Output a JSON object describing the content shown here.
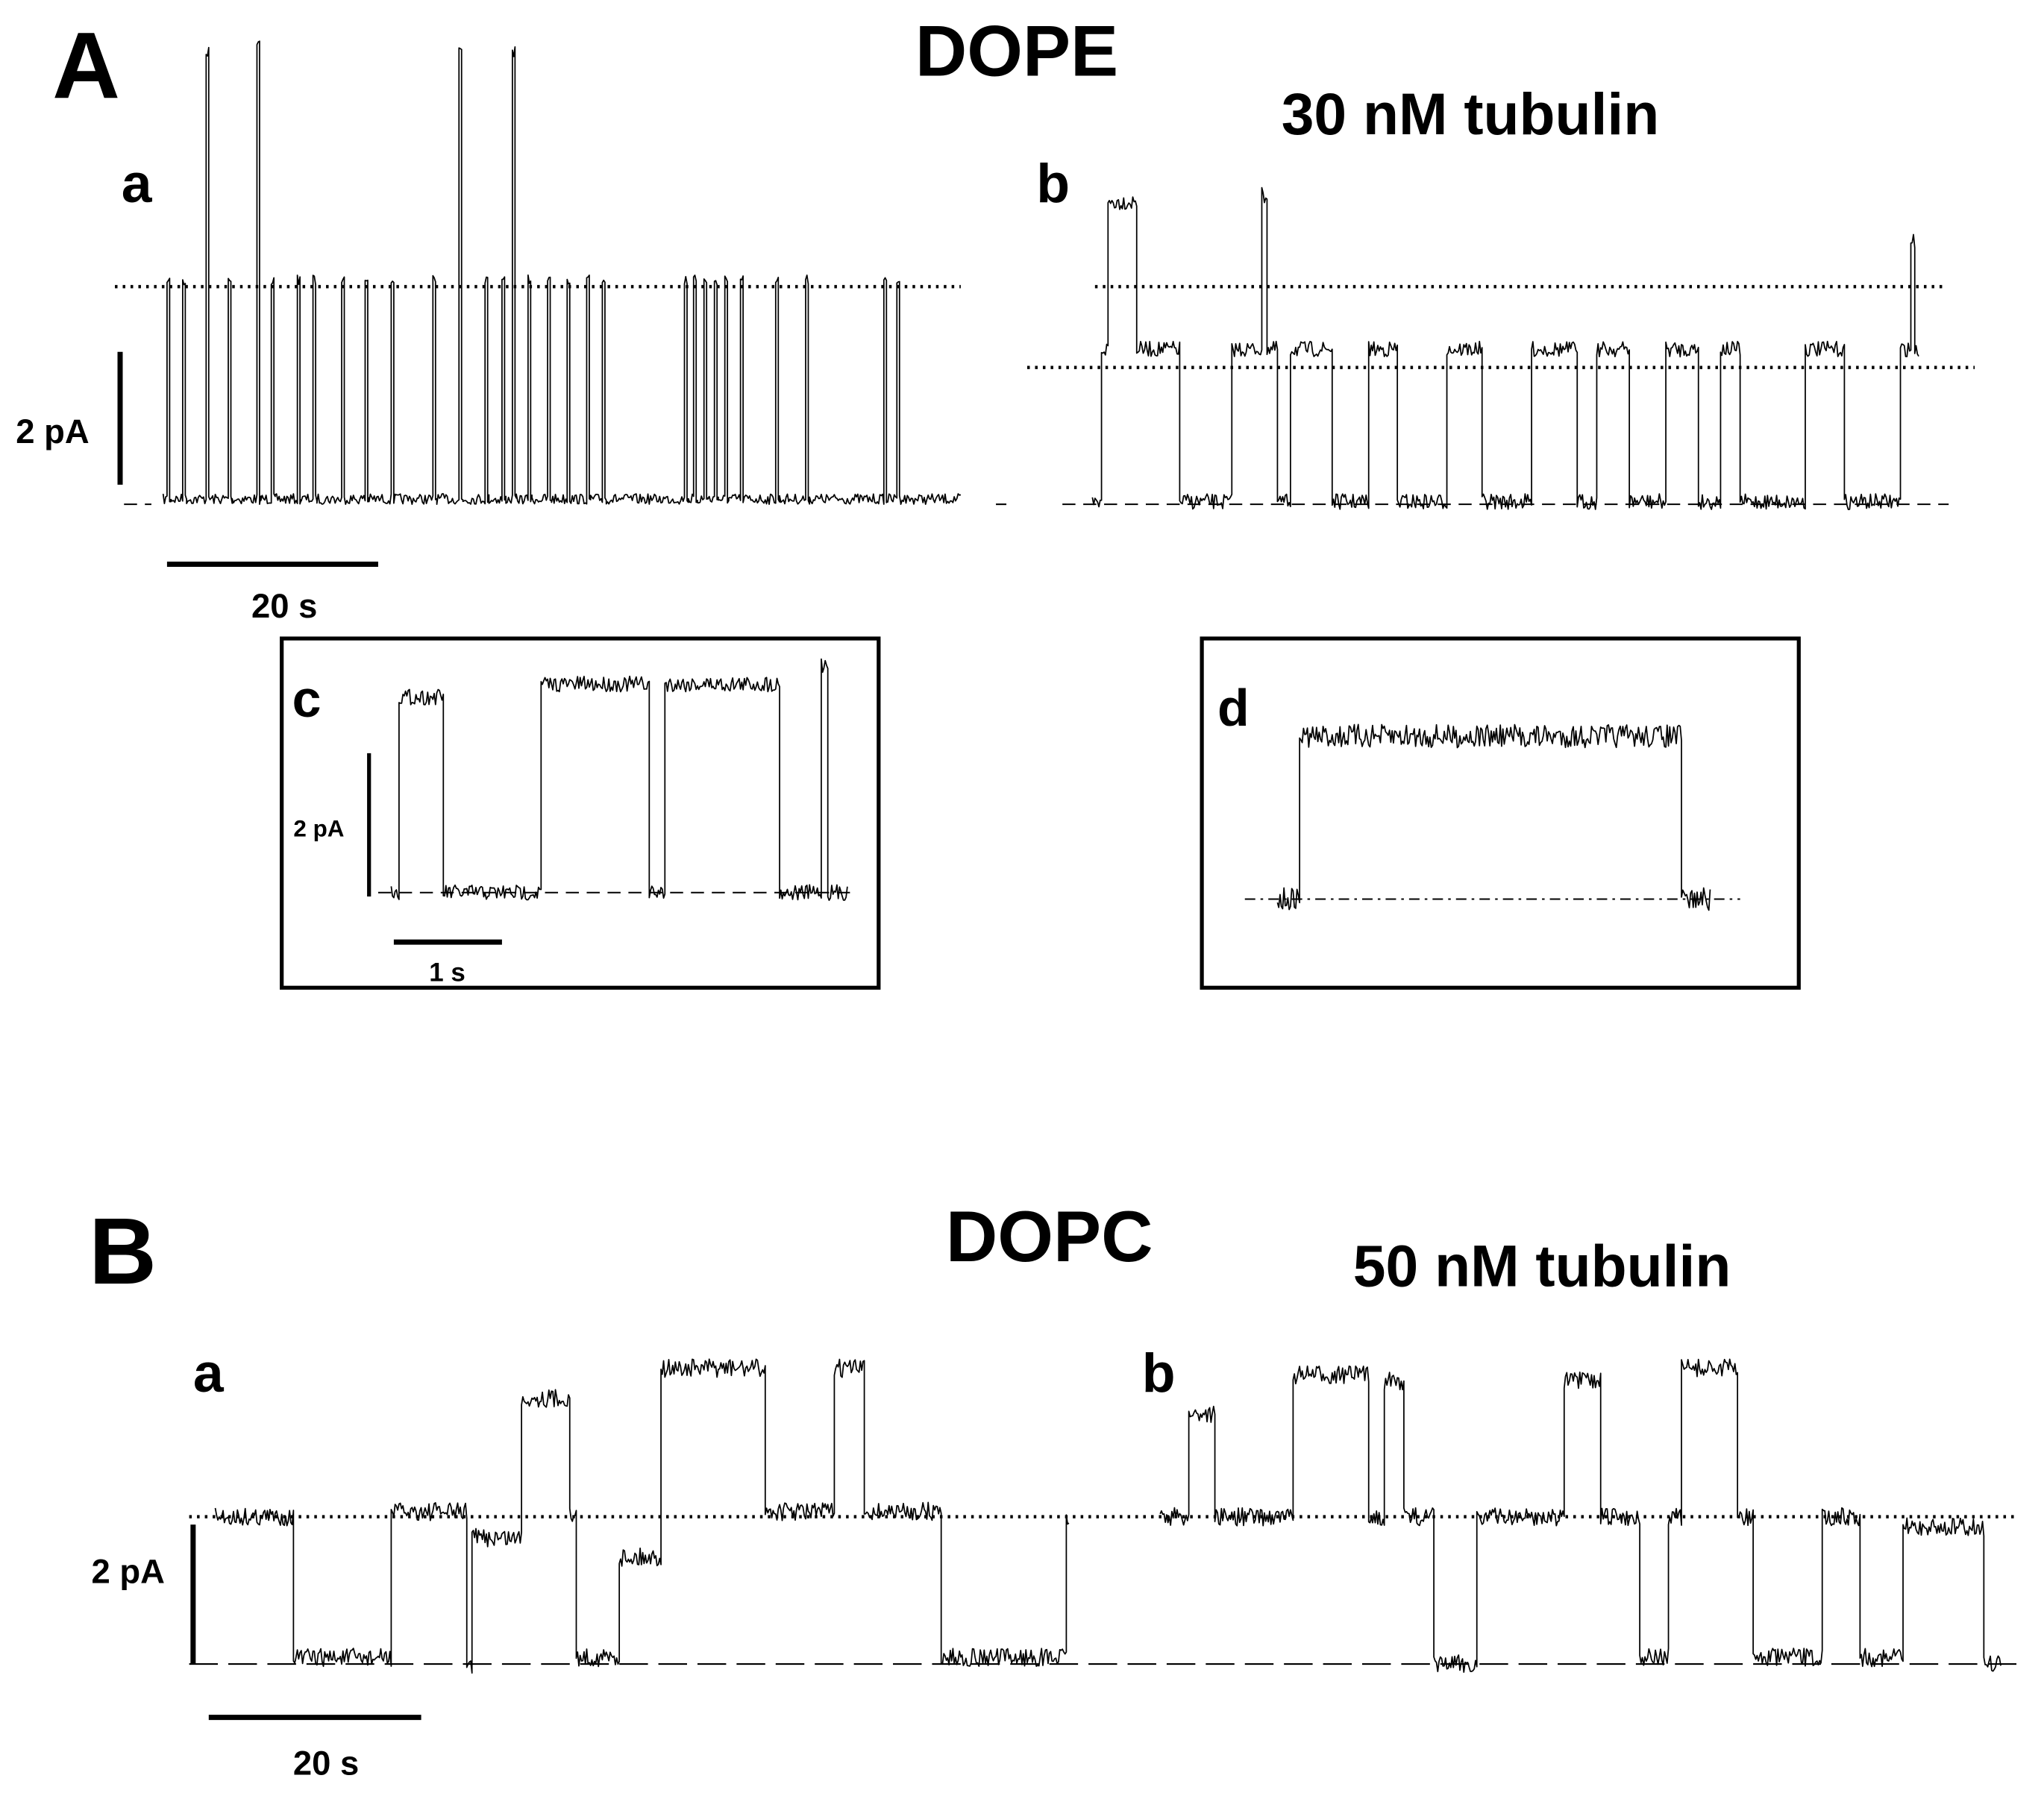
{
  "panel_A": {
    "label": "A",
    "lipid": "DOPE",
    "condition": "30 nM tubulin",
    "subpanels": [
      "a",
      "b",
      "c",
      "d"
    ],
    "scale_bars": [
      {
        "current": "2 pA",
        "time": "20 s"
      },
      {
        "current": "2 pA",
        "time": "1 s"
      }
    ]
  },
  "panel_B": {
    "label": "B",
    "lipid": "DOPC",
    "condition": "50 nM tubulin",
    "subpanels": [
      "a",
      "b"
    ],
    "scale_bars": [
      {
        "current": "2 pA",
        "time": "20 s"
      }
    ]
  }
}
